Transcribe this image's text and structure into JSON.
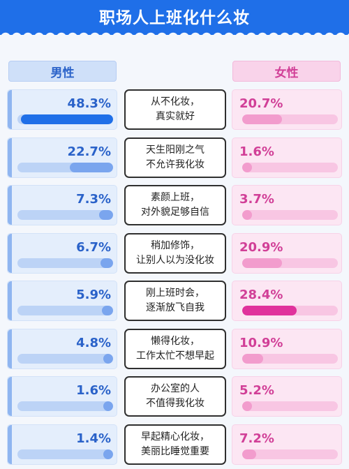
{
  "header": {
    "title": "职场人上班化什么妆"
  },
  "columns": {
    "male": "男性",
    "female": "女性"
  },
  "chart_data": {
    "type": "bar",
    "title": "职场人上班化什么妆",
    "categories": [
      [
        "从不化妆，",
        "真实就好"
      ],
      [
        "天生阳刚之气",
        "不允许我化妆"
      ],
      [
        "素颜上班，",
        "对外貌足够自信"
      ],
      [
        "稍加修饰，",
        "让别人以为没化妆"
      ],
      [
        "刚上班时会，",
        "逐渐放飞自我"
      ],
      [
        "懒得化妆，",
        "工作太忙不想早起"
      ],
      [
        "办公室的人",
        "不值得我化妆"
      ],
      [
        "早起精心化妆，",
        "美丽比睡觉重要"
      ]
    ],
    "series": [
      {
        "name": "男性",
        "values": [
          48.3,
          22.7,
          7.3,
          6.7,
          5.9,
          4.8,
          1.6,
          1.4
        ],
        "labels": [
          "48.3%",
          "22.7%",
          "7.3%",
          "6.7%",
          "5.9%",
          "4.8%",
          "1.6%",
          "1.4%"
        ]
      },
      {
        "name": "女性",
        "values": [
          20.7,
          1.6,
          3.7,
          20.9,
          28.4,
          10.9,
          5.2,
          7.2
        ],
        "labels": [
          "20.7%",
          "1.6%",
          "3.7%",
          "20.9%",
          "28.4%",
          "10.9%",
          "5.2%",
          "7.2%"
        ]
      }
    ],
    "highlight": {
      "male": 0,
      "female": 4
    },
    "ylim": [
      0,
      50
    ]
  },
  "colors": {
    "male_accent": "#1f6fe8",
    "female_accent": "#e0329c"
  }
}
